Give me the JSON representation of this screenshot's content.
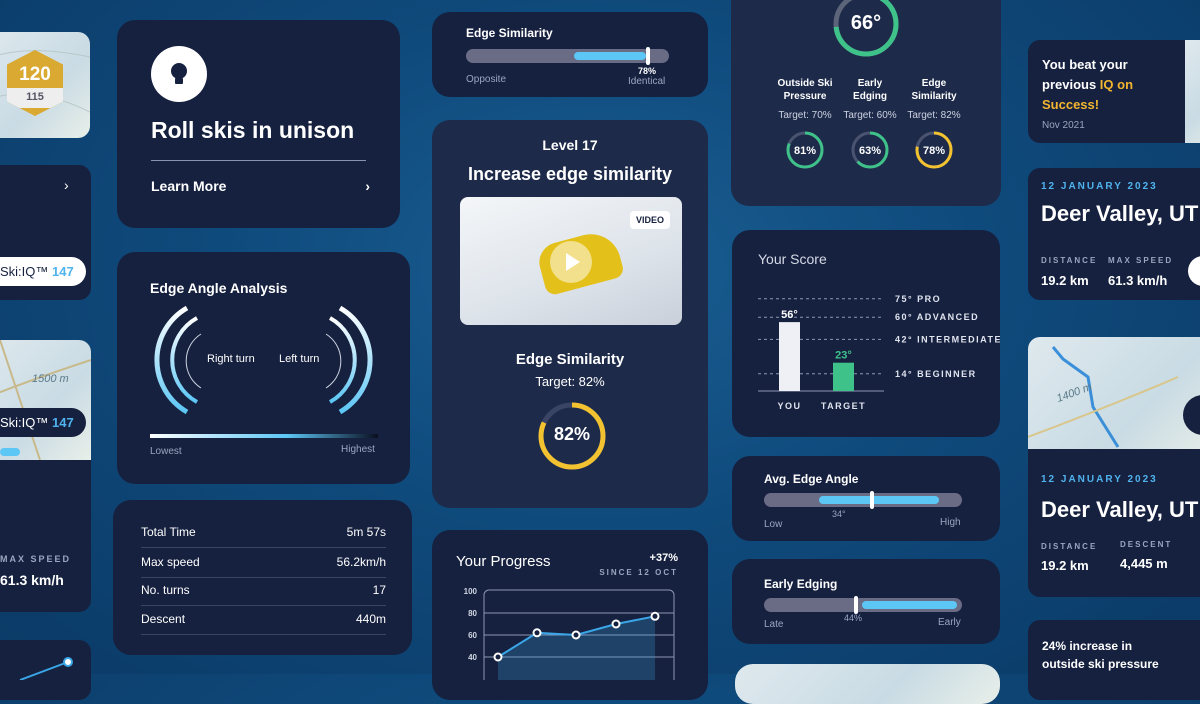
{
  "left_column": {
    "badge": {
      "top": "120",
      "bottom": "115"
    },
    "skiiq_pill_1": {
      "label": "Ski:IQ™",
      "value": "147"
    },
    "skiiq_pill_2": {
      "label": "Ski:IQ™",
      "value": "147"
    },
    "map_label": "1500 m",
    "max_speed_label": "MAX SPEED",
    "max_speed_value": "61.3 km/h"
  },
  "lesson_card": {
    "title": "Roll skis in unison",
    "link": "Learn More",
    "icon": "lightbulb-icon"
  },
  "edge_angle_card": {
    "title": "Edge Angle Analysis",
    "right_turn": "Right turn",
    "left_turn": "Left turn",
    "lowest": "Lowest",
    "highest": "Highest"
  },
  "stats_table": {
    "rows": [
      {
        "label": "Total Time",
        "value": "5m 57s"
      },
      {
        "label": "Max speed",
        "value": "56.2km/h"
      },
      {
        "label": "No. turns",
        "value": "17"
      },
      {
        "label": "Descent",
        "value": "440m"
      }
    ]
  },
  "edge_similarity_bar": {
    "title": "Edge Similarity",
    "left": "Opposite",
    "right": "Identical",
    "value_label": "78%",
    "value": 78
  },
  "level_card": {
    "level": "Level 17",
    "title": "Increase edge similarity",
    "video_badge": "VIDEO",
    "metric": "Edge Similarity",
    "target": "Target: 82%",
    "value_label": "82%",
    "value": 82,
    "ring_color": "#f2c230"
  },
  "summary_card": {
    "angle": "66°",
    "angle_value": 66,
    "metrics": [
      {
        "name1": "Outside Ski",
        "name2": "Pressure",
        "target": "Target: 70%",
        "value": "81%",
        "pct": 81,
        "color": "#3ec28a"
      },
      {
        "name1": "Early",
        "name2": "Edging",
        "target": "Target: 60%",
        "value": "63%",
        "pct": 63,
        "color": "#3ec28a"
      },
      {
        "name1": "Edge",
        "name2": "Similarity",
        "target": "Target: 82%",
        "value": "78%",
        "pct": 78,
        "color": "#f2c230"
      }
    ]
  },
  "avg_edge_angle": {
    "title": "Avg. Edge Angle",
    "low": "Low",
    "high": "High",
    "value_label": "34°"
  },
  "early_edging": {
    "title": "Early Edging",
    "low": "Late",
    "high": "Early",
    "value_label": "44%"
  },
  "achievement": {
    "line1": "You beat your",
    "line2a": "previous ",
    "line2b": "IQ on",
    "line3": "Success!",
    "date": "Nov 2021",
    "accent": "#f2b530"
  },
  "run_card_1": {
    "date": "12 JANUARY 2023",
    "title": "Deer Valley, UT",
    "stats": [
      {
        "label": "DISTANCE",
        "value": "19.2 km"
      },
      {
        "label": "MAX SPEED",
        "value": "61.3 km/h"
      }
    ]
  },
  "run_card_2": {
    "map_label": "1400 m",
    "date": "12 JANUARY 2023",
    "title": "Deer Valley, UT",
    "stats": [
      {
        "label": "DISTANCE",
        "value": "19.2 km"
      },
      {
        "label": "DESCENT",
        "value": "4,445 m"
      }
    ]
  },
  "insight_card": {
    "text1": "24% increase in",
    "text2": "outside ski pressure"
  },
  "chart_data": [
    {
      "type": "bar",
      "title": "Your Score",
      "categories": [
        "YOU",
        "TARGET"
      ],
      "values": [
        56,
        23
      ],
      "value_labels": [
        "56°",
        "23°"
      ],
      "colors": [
        "#eef0f5",
        "#3ec28a"
      ],
      "reference_lines": [
        {
          "value": 75,
          "label": "75° PRO"
        },
        {
          "value": 60,
          "label": "60° ADVANCED"
        },
        {
          "value": 42,
          "label": "42° INTERMEDIATE"
        },
        {
          "value": 14,
          "label": "14° BEGINNER"
        }
      ]
    },
    {
      "type": "line",
      "title": "Your Progress",
      "change": "+37%",
      "subtitle": "SINCE 12 OCT",
      "y_ticks": [
        40,
        60,
        80,
        100
      ],
      "values": [
        40,
        62,
        60,
        70,
        77
      ],
      "ylim": [
        40,
        100
      ],
      "color": "#3aa6e8"
    }
  ]
}
